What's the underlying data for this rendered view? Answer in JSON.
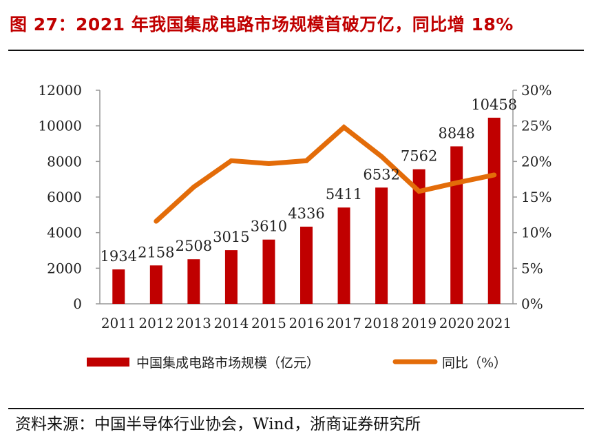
{
  "title": "图 27：2021 年我国集成电路市场规模首破万亿，同比增 18%",
  "source": "资料来源：中国半导体行业协会，Wind，浙商证券研究所",
  "colors": {
    "bar": "#c00000",
    "line": "#e36c09",
    "title": "#c00000"
  },
  "chart_data": {
    "type": "bar+line",
    "categories": [
      "2011",
      "2012",
      "2013",
      "2014",
      "2015",
      "2016",
      "2017",
      "2018",
      "2019",
      "2020",
      "2021"
    ],
    "series": [
      {
        "name": "中国集成电路市场规模（亿元）",
        "type": "bar",
        "axis": "left",
        "values": [
          1934,
          2158,
          2508,
          3015,
          3610,
          4336,
          5411,
          6532,
          7562,
          8848,
          10458
        ]
      },
      {
        "name": "同比（%）",
        "type": "line",
        "axis": "right",
        "values": [
          null,
          11.6,
          16.4,
          20.1,
          19.7,
          20.1,
          24.8,
          20.7,
          15.8,
          17.0,
          18.1
        ]
      }
    ],
    "left_axis": {
      "ylim": [
        0,
        12000
      ],
      "ticks": [
        "0",
        "2000",
        "4000",
        "6000",
        "8000",
        "10000",
        "12000"
      ]
    },
    "right_axis": {
      "ylim": [
        0,
        30
      ],
      "ticks": [
        "0%",
        "5%",
        "10%",
        "15%",
        "20%",
        "25%",
        "30%"
      ]
    },
    "data_labels": true,
    "grid": false,
    "legend": "bottom"
  }
}
